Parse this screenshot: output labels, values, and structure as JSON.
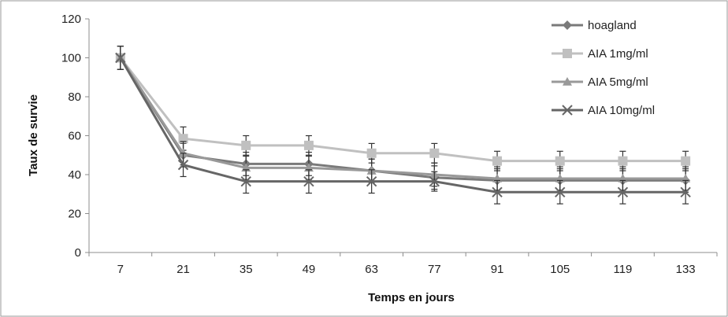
{
  "chart_data": {
    "type": "line",
    "title": "",
    "xlabel": "Temps en jours",
    "ylabel": "Taux de survie",
    "categories": [
      "7",
      "21",
      "35",
      "49",
      "63",
      "77",
      "91",
      "105",
      "119",
      "133"
    ],
    "ylim": [
      0,
      120
    ],
    "yticks": [
      0,
      20,
      40,
      60,
      80,
      100,
      120
    ],
    "grid": false,
    "legend_position": "top-right",
    "series": [
      {
        "name": "hoagland",
        "marker": "diamond",
        "color": "#7a7a7a",
        "values": [
          100,
          50,
          45.5,
          45.5,
          42,
          38.5,
          37,
          37,
          37,
          37
        ],
        "errors": [
          6,
          6,
          6,
          6,
          6,
          6,
          6,
          6,
          6,
          6
        ]
      },
      {
        "name": "AIA 1mg/ml",
        "marker": "square",
        "color": "#c0c0c0",
        "values": [
          100,
          58.5,
          55,
          55,
          51,
          51,
          47,
          47,
          47,
          47
        ],
        "errors": [
          6,
          6,
          5,
          5,
          5,
          5,
          5,
          5,
          5,
          5
        ]
      },
      {
        "name": "AIA 5mg/ml",
        "marker": "triangle",
        "color": "#999999",
        "values": [
          100,
          51,
          43.5,
          43.5,
          42,
          40,
          38,
          38,
          38,
          38
        ],
        "errors": [
          6,
          6,
          6,
          6,
          6,
          6,
          6,
          6,
          6,
          6
        ]
      },
      {
        "name": "AIA 10mg/ml",
        "marker": "x",
        "color": "#666666",
        "values": [
          100,
          45,
          36.5,
          36.5,
          36.5,
          36.5,
          31,
          31,
          31,
          31
        ],
        "errors": [
          6,
          6,
          6,
          6,
          6,
          5,
          6,
          6,
          6,
          6
        ]
      }
    ]
  }
}
